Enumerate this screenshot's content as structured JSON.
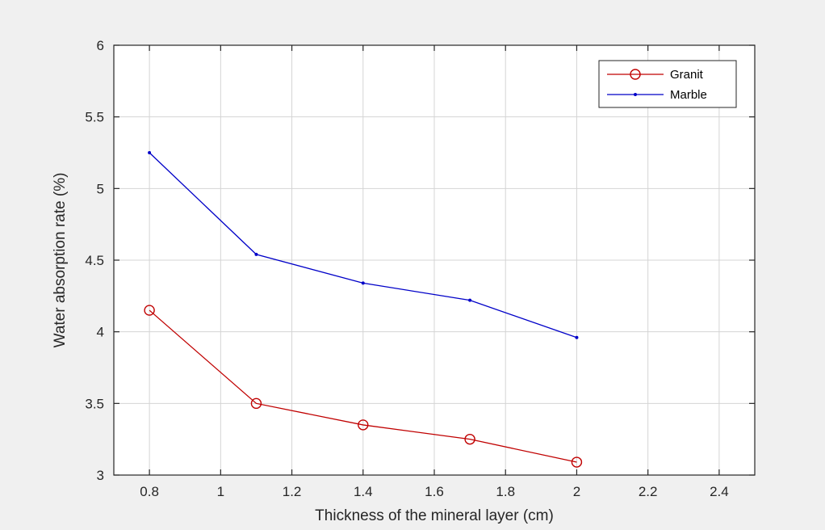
{
  "chart_data": {
    "type": "line",
    "title": "",
    "xlabel": "Thickness of the mineral layer (cm)",
    "ylabel": "Water absorption rate (%)",
    "xlim": [
      0.7,
      2.5
    ],
    "ylim": [
      3,
      6
    ],
    "xticks": [
      0.8,
      1,
      1.2,
      1.4,
      1.6,
      1.8,
      2,
      2.2,
      2.4
    ],
    "yticks": [
      3,
      3.5,
      4,
      4.5,
      5,
      5.5,
      6
    ],
    "xtick_labels": [
      "0.8",
      "1",
      "1.2",
      "1.4",
      "1.6",
      "1.8",
      "2",
      "2.2",
      "2.4"
    ],
    "ytick_labels": [
      "3",
      "3.5",
      "4",
      "4.5",
      "5",
      "5.5",
      "6"
    ],
    "grid": true,
    "legend_position": "top-right",
    "x": [
      0.8,
      1.1,
      1.4,
      1.7,
      2.0
    ],
    "series": [
      {
        "name": "Granit",
        "values": [
          4.15,
          3.5,
          3.35,
          3.25,
          3.09
        ],
        "color": "#c00000",
        "marker": "circle"
      },
      {
        "name": "Marble",
        "values": [
          5.25,
          4.54,
          4.34,
          4.22,
          3.96
        ],
        "color": "#0000c8",
        "marker": "dot"
      }
    ]
  }
}
